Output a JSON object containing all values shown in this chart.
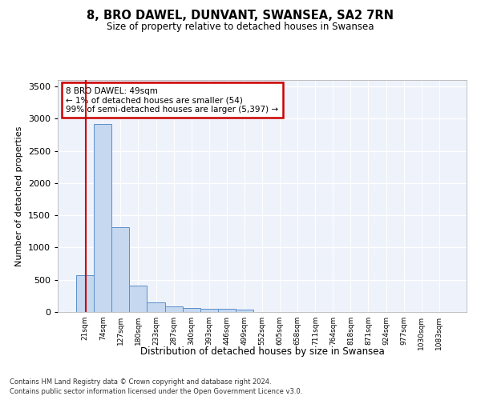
{
  "title": "8, BRO DAWEL, DUNVANT, SWANSEA, SA2 7RN",
  "subtitle": "Size of property relative to detached houses in Swansea",
  "xlabel": "Distribution of detached houses by size in Swansea",
  "ylabel": "Number of detached properties",
  "bar_color": "#c5d8f0",
  "bar_edge_color": "#5b8fc9",
  "categories": [
    "21sqm",
    "74sqm",
    "127sqm",
    "180sqm",
    "233sqm",
    "287sqm",
    "340sqm",
    "393sqm",
    "446sqm",
    "499sqm",
    "552sqm",
    "605sqm",
    "658sqm",
    "711sqm",
    "764sqm",
    "818sqm",
    "871sqm",
    "924sqm",
    "977sqm",
    "1030sqm",
    "1083sqm"
  ],
  "values": [
    570,
    2920,
    1320,
    410,
    155,
    85,
    60,
    55,
    45,
    40,
    0,
    0,
    0,
    0,
    0,
    0,
    0,
    0,
    0,
    0,
    0
  ],
  "ylim": [
    0,
    3600
  ],
  "yticks": [
    0,
    500,
    1000,
    1500,
    2000,
    2500,
    3000,
    3500
  ],
  "annotation_text": "8 BRO DAWEL: 49sqm\n← 1% of detached houses are smaller (54)\n99% of semi-detached houses are larger (5,397) →",
  "annotation_box_color": "#ffffff",
  "annotation_box_edge": "#cc0000",
  "red_line_color": "#cc0000",
  "background_color": "#eef2fb",
  "grid_color": "#ffffff",
  "footer1": "Contains HM Land Registry data © Crown copyright and database right 2024.",
  "footer2": "Contains public sector information licensed under the Open Government Licence v3.0."
}
